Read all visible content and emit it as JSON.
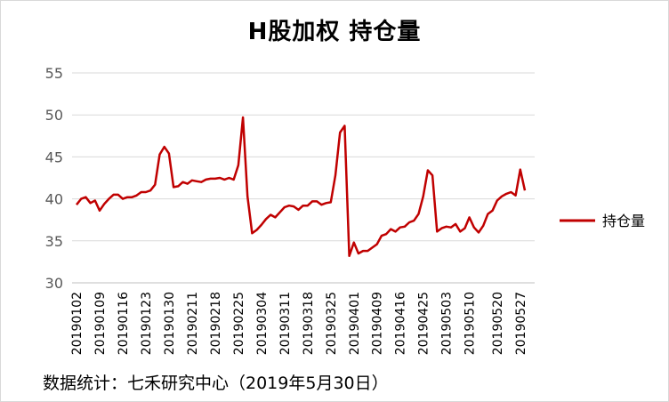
{
  "chart_data": {
    "type": "line",
    "title": "H股加权  持仓量",
    "xlabel": "",
    "ylabel": "",
    "ylim": [
      30,
      55
    ],
    "yticks": [
      30,
      35,
      40,
      45,
      50,
      55
    ],
    "grid": true,
    "legend": "right",
    "x_tick_labels": [
      "20190102",
      "20190109",
      "20190116",
      "20190123",
      "20190130",
      "20190211",
      "20190218",
      "20190225",
      "20190304",
      "20190311",
      "20190318",
      "20190325",
      "20190401",
      "20190409",
      "20190416",
      "20190425",
      "20190503",
      "20190510",
      "20190520",
      "20190527"
    ],
    "series": [
      {
        "name": "持仓量",
        "color": "#c00000",
        "values": [
          39.3,
          40.0,
          40.2,
          39.5,
          39.8,
          38.6,
          39.4,
          40.0,
          40.5,
          40.5,
          40.0,
          40.2,
          40.2,
          40.4,
          40.8,
          40.8,
          41.0,
          41.7,
          45.3,
          46.2,
          45.4,
          41.4,
          41.5,
          42.0,
          41.8,
          42.2,
          42.1,
          42.0,
          42.3,
          42.4,
          42.4,
          42.5,
          42.3,
          42.5,
          42.3,
          44.0,
          49.7,
          40.3,
          35.9,
          36.3,
          36.9,
          37.6,
          38.1,
          37.8,
          38.4,
          39.0,
          39.2,
          39.1,
          38.7,
          39.2,
          39.2,
          39.7,
          39.7,
          39.3,
          39.5,
          39.6,
          42.8,
          47.9,
          48.7,
          33.2,
          34.8,
          33.5,
          33.8,
          33.8,
          34.2,
          34.6,
          35.6,
          35.8,
          36.4,
          36.1,
          36.6,
          36.7,
          37.2,
          37.4,
          38.2,
          40.3,
          43.4,
          42.8,
          36.1,
          36.5,
          36.7,
          36.6,
          37.0,
          36.1,
          36.5,
          37.8,
          36.6,
          36.0,
          36.8,
          38.2,
          38.6,
          39.8,
          40.3,
          40.6,
          40.8,
          40.4,
          43.5,
          41.0
        ]
      }
    ]
  },
  "source_note": "数据统计：七禾研究中心（2019年5月30日）"
}
